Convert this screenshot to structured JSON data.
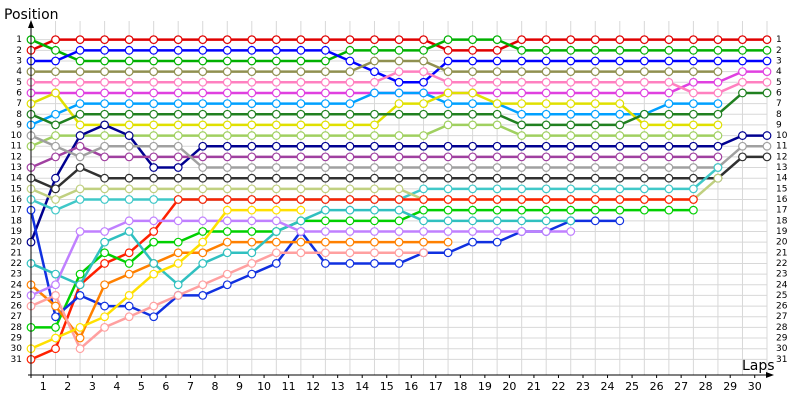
{
  "chart_data": {
    "type": "line",
    "y_label": "Position",
    "x_label": "Laps",
    "x": [
      0,
      1,
      2,
      3,
      4,
      5,
      6,
      7,
      8,
      9,
      10,
      11,
      12,
      13,
      14,
      15,
      16,
      17,
      18,
      19,
      20,
      21,
      22,
      23,
      24,
      25,
      26,
      27,
      28,
      29,
      30
    ],
    "xlim": [
      0,
      30
    ],
    "ylim": [
      0,
      32
    ],
    "y_reversed": true,
    "grid": true,
    "xticks": [
      {
        "value": 0.5,
        "label": "1"
      },
      {
        "value": 1.5,
        "label": "2"
      },
      {
        "value": 2.5,
        "label": "3"
      },
      {
        "value": 3.5,
        "label": "4"
      },
      {
        "value": 4.5,
        "label": "5"
      },
      {
        "value": 5.5,
        "label": "6"
      },
      {
        "value": 6.5,
        "label": "7"
      },
      {
        "value": 7.5,
        "label": "8"
      },
      {
        "value": 8.5,
        "label": "9"
      },
      {
        "value": 9.5,
        "label": "10"
      },
      {
        "value": 10.5,
        "label": "11"
      },
      {
        "value": 11.5,
        "label": "12"
      },
      {
        "value": 12.5,
        "label": "13"
      },
      {
        "value": 13.5,
        "label": "14"
      },
      {
        "value": 14.5,
        "label": "15"
      },
      {
        "value": 15.5,
        "label": "16"
      },
      {
        "value": 16.5,
        "label": "17"
      },
      {
        "value": 17.5,
        "label": "18"
      },
      {
        "value": 18.5,
        "label": "19"
      },
      {
        "value": 19.5,
        "label": "20"
      },
      {
        "value": 20.5,
        "label": "21"
      },
      {
        "value": 21.5,
        "label": "22"
      },
      {
        "value": 22.5,
        "label": "23"
      },
      {
        "value": 23.5,
        "label": "24"
      },
      {
        "value": 24.5,
        "label": "25"
      },
      {
        "value": 25.5,
        "label": "26"
      },
      {
        "value": 26.5,
        "label": "27"
      },
      {
        "value": 27.5,
        "label": "28"
      },
      {
        "value": 28.5,
        "label": "29"
      },
      {
        "value": 29.5,
        "label": "30"
      }
    ],
    "yticks": [
      1,
      2,
      3,
      4,
      5,
      6,
      7,
      8,
      9,
      10,
      11,
      12,
      13,
      14,
      15,
      16,
      17,
      18,
      19,
      20,
      21,
      22,
      23,
      24,
      25,
      26,
      27,
      28,
      29,
      30,
      31
    ],
    "series": [
      {
        "color": "#e00000",
        "values": [
          2,
          1,
          1,
          1,
          1,
          1,
          1,
          1,
          1,
          1,
          1,
          1,
          1,
          1,
          1,
          1,
          1,
          2,
          2,
          2,
          1,
          1,
          1,
          1,
          1,
          1,
          1,
          1,
          1,
          1,
          1
        ]
      },
      {
        "color": "#00b000",
        "values": [
          1,
          2,
          3,
          3,
          3,
          3,
          3,
          3,
          3,
          3,
          3,
          3,
          3,
          2,
          2,
          2,
          2,
          1,
          1,
          1,
          2,
          2,
          2,
          2,
          2,
          2,
          2,
          2,
          2,
          2,
          2
        ]
      },
      {
        "color": "#0000ff",
        "values": [
          3,
          3,
          2,
          2,
          2,
          2,
          2,
          2,
          2,
          2,
          2,
          2,
          2,
          3,
          4,
          5,
          5,
          3,
          3,
          3,
          3,
          3,
          3,
          3,
          3,
          3,
          3,
          3,
          3,
          3,
          3
        ]
      },
      {
        "color": "#909050",
        "values": [
          4,
          4,
          4,
          4,
          4,
          4,
          4,
          4,
          4,
          4,
          4,
          4,
          4,
          4,
          3,
          3,
          3,
          4,
          4,
          4,
          4,
          4,
          4,
          4,
          4,
          4,
          4,
          4,
          4,
          null,
          null
        ]
      },
      {
        "color": "#e040e0",
        "values": [
          6,
          6,
          6,
          6,
          6,
          6,
          6,
          6,
          6,
          6,
          6,
          6,
          6,
          6,
          6,
          6,
          6,
          6,
          6,
          6,
          6,
          6,
          6,
          6,
          6,
          6,
          6,
          5,
          5,
          4,
          4
        ]
      },
      {
        "color": "#ff80c0",
        "values": [
          5,
          5,
          5,
          5,
          5,
          5,
          5,
          5,
          5,
          5,
          5,
          5,
          5,
          5,
          5,
          4,
          4,
          5,
          5,
          5,
          5,
          5,
          5,
          5,
          5,
          5,
          5,
          6,
          6,
          5,
          5
        ]
      },
      {
        "color": "#00a0ff",
        "values": [
          9,
          8,
          7,
          7,
          7,
          7,
          7,
          7,
          7,
          7,
          7,
          7,
          7,
          7,
          6,
          6,
          6,
          7,
          7,
          7,
          8,
          8,
          8,
          8,
          8,
          8,
          7,
          7,
          7,
          null,
          null
        ]
      },
      {
        "color": "#e0e000",
        "values": [
          7,
          6,
          9,
          9,
          9,
          9,
          9,
          9,
          9,
          9,
          9,
          9,
          9,
          9,
          9,
          7,
          7,
          6,
          6,
          7,
          7,
          7,
          7,
          7,
          7,
          9,
          9,
          9,
          9,
          null,
          null
        ]
      },
      {
        "color": "#208020",
        "values": [
          8,
          9,
          8,
          8,
          8,
          8,
          8,
          8,
          8,
          8,
          8,
          8,
          8,
          8,
          8,
          8,
          8,
          8,
          8,
          8,
          9,
          9,
          9,
          9,
          9,
          8,
          8,
          8,
          8,
          6,
          6
        ]
      },
      {
        "color": "#a0d060",
        "values": [
          11,
          10,
          10,
          10,
          10,
          10,
          10,
          10,
          10,
          10,
          10,
          10,
          10,
          10,
          10,
          10,
          10,
          9,
          9,
          9,
          10,
          10,
          10,
          10,
          10,
          10,
          10,
          10,
          10,
          null,
          null
        ]
      },
      {
        "color": "#000090",
        "values": [
          20,
          14,
          10,
          9,
          10,
          13,
          13,
          11,
          11,
          11,
          11,
          11,
          11,
          11,
          11,
          11,
          11,
          11,
          11,
          11,
          11,
          11,
          11,
          11,
          11,
          11,
          11,
          11,
          11,
          10,
          10
        ]
      },
      {
        "color": "#a040a0",
        "values": [
          13,
          12,
          11,
          12,
          12,
          12,
          12,
          12,
          12,
          12,
          12,
          12,
          12,
          12,
          12,
          12,
          12,
          12,
          12,
          12,
          12,
          12,
          12,
          12,
          12,
          12,
          12,
          12,
          12,
          null,
          null
        ]
      },
      {
        "color": "#a0a0a0",
        "values": [
          10,
          11,
          12,
          11,
          11,
          11,
          11,
          13,
          13,
          13,
          13,
          13,
          13,
          13,
          13,
          13,
          13,
          13,
          13,
          13,
          13,
          13,
          13,
          13,
          13,
          13,
          13,
          13,
          13,
          11,
          11
        ]
      },
      {
        "color": "#303030",
        "values": [
          14,
          15,
          13,
          14,
          14,
          14,
          14,
          14,
          14,
          14,
          14,
          14,
          14,
          14,
          14,
          14,
          14,
          14,
          14,
          14,
          14,
          14,
          14,
          14,
          14,
          14,
          14,
          14,
          14,
          12,
          12
        ]
      },
      {
        "color": "#40c8c8",
        "values": [
          16,
          17,
          16,
          16,
          16,
          16,
          16,
          16,
          16,
          16,
          16,
          16,
          16,
          16,
          16,
          16,
          15,
          15,
          15,
          15,
          15,
          15,
          15,
          15,
          15,
          15,
          15,
          15,
          13,
          null,
          null
        ]
      },
      {
        "color": "#c0d080",
        "values": [
          15,
          16,
          15,
          15,
          15,
          15,
          15,
          15,
          15,
          15,
          15,
          15,
          15,
          15,
          15,
          15,
          16,
          16,
          16,
          16,
          16,
          16,
          16,
          16,
          16,
          16,
          16,
          16,
          14,
          null,
          null
        ]
      },
      {
        "color": "#ff2000",
        "values": [
          31,
          30,
          24,
          22,
          21,
          19,
          16,
          16,
          16,
          16,
          16,
          16,
          16,
          16,
          16,
          16,
          16,
          16,
          16,
          16,
          16,
          16,
          16,
          16,
          16,
          16,
          16,
          16,
          null,
          null,
          null
        ]
      },
      {
        "color": "#00d000",
        "values": [
          28,
          28,
          23,
          21,
          22,
          20,
          20,
          19,
          19,
          19,
          19,
          18,
          18,
          18,
          18,
          18,
          17,
          17,
          17,
          17,
          17,
          17,
          17,
          17,
          17,
          17,
          17,
          17,
          null,
          null,
          null
        ]
      },
      {
        "color": "#1030e0",
        "values": [
          17,
          27,
          25,
          26,
          26,
          27,
          25,
          25,
          24,
          23,
          22,
          19,
          22,
          22,
          22,
          22,
          21,
          21,
          20,
          20,
          19,
          19,
          18,
          18,
          18,
          null,
          null,
          null,
          null,
          null,
          null
        ]
      },
      {
        "color": "#ff8000",
        "values": [
          24,
          26,
          29,
          24,
          23,
          22,
          21,
          21,
          20,
          20,
          20,
          20,
          20,
          20,
          20,
          20,
          20,
          20,
          null,
          null,
          null,
          null,
          null,
          null,
          null,
          null,
          null,
          null,
          null,
          null,
          null
        ]
      },
      {
        "color": "#ffa0a0",
        "values": [
          26,
          25,
          30,
          28,
          27,
          26,
          25,
          24,
          23,
          22,
          21,
          21,
          21,
          21,
          21,
          21,
          21,
          null,
          null,
          null,
          null,
          null,
          null,
          null,
          null,
          null,
          null,
          null,
          null,
          null,
          null
        ]
      },
      {
        "color": "#30c0c0",
        "values": [
          22,
          23,
          24,
          20,
          19,
          22,
          24,
          22,
          21,
          21,
          19,
          18,
          17,
          17,
          17,
          17,
          18,
          18,
          18,
          18,
          18,
          18,
          18,
          null,
          null,
          null,
          null,
          null,
          null,
          null,
          null
        ]
      },
      {
        "color": "#c080ff",
        "values": [
          25,
          24,
          19,
          19,
          18,
          18,
          18,
          18,
          18,
          18,
          18,
          19,
          19,
          19,
          19,
          19,
          19,
          19,
          19,
          19,
          19,
          19,
          19,
          null,
          null,
          null,
          null,
          null,
          null,
          null,
          null
        ]
      },
      {
        "color": "#ffe000",
        "values": [
          30,
          29,
          28,
          27,
          25,
          23,
          22,
          20,
          17,
          17,
          17,
          17,
          null,
          null,
          null,
          null,
          null,
          null,
          null,
          null,
          null,
          null,
          null,
          null,
          null,
          null,
          null,
          null,
          null,
          null,
          null
        ]
      }
    ]
  }
}
